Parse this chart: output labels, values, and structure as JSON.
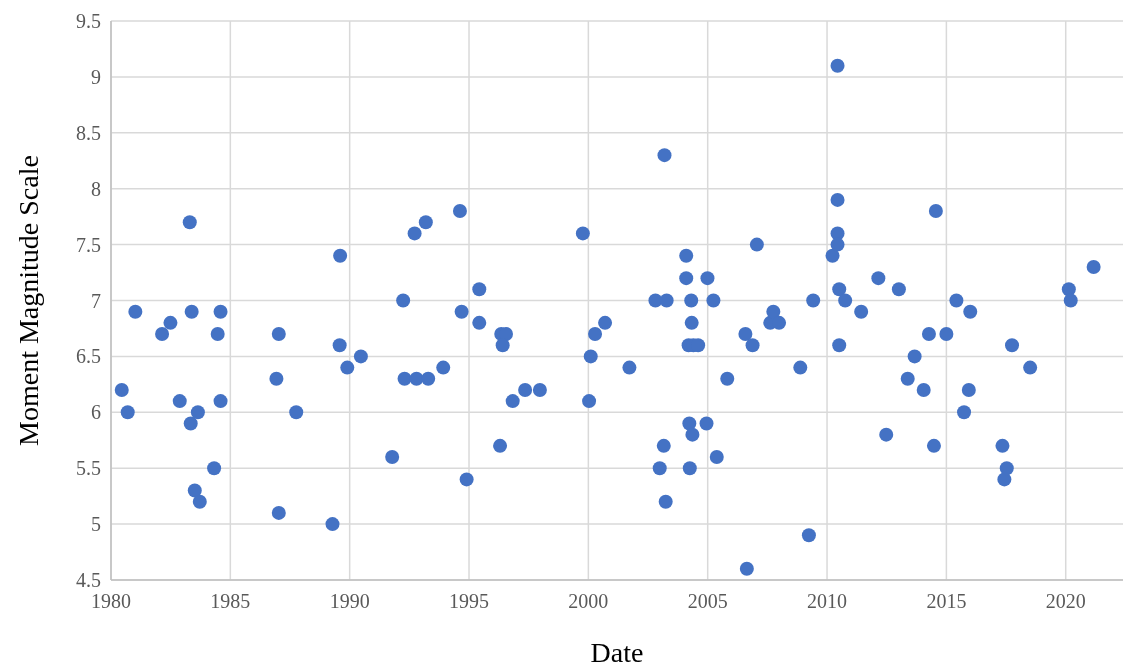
{
  "chart_data": {
    "type": "scatter",
    "xlabel": "Date",
    "ylabel": "Moment Magnitude Scale",
    "color": "#4472c4",
    "marker": "circle",
    "grid": true,
    "xlim": [
      1980,
      2022.4
    ],
    "xticks": [
      1980,
      1985,
      1990,
      1995,
      2000,
      2005,
      2010,
      2015,
      2020
    ],
    "ylim": [
      4.5,
      9.5
    ],
    "yticks": [
      4.5,
      5,
      5.5,
      6,
      6.5,
      7,
      7.5,
      8,
      8.5,
      9,
      9.5
    ],
    "x": [
      1980.45,
      1980.7,
      1981.02,
      1982.14,
      1982.49,
      1982.88,
      1983.3,
      1983.38,
      1983.34,
      1983.51,
      1983.64,
      1983.72,
      1984.32,
      1984.47,
      1984.59,
      1984.59,
      1986.93,
      1987.03,
      1987.03,
      1987.76,
      1989.28,
      1989.6,
      1989.58,
      1989.9,
      1990.47,
      1991.78,
      1992.24,
      1992.3,
      1992.72,
      1992.8,
      1993.19,
      1993.29,
      1993.92,
      1994.62,
      1994.69,
      1994.9,
      1995.43,
      1995.43,
      1996.3,
      1996.35,
      1996.55,
      1996.41,
      1996.83,
      1997.35,
      1997.97,
      1999.77,
      2000.03,
      2000.1,
      2000.28,
      2000.7,
      2001.72,
      2002.81,
      2002.99,
      2003.16,
      2003.19,
      2003.24,
      2003.28,
      2004.1,
      2004.1,
      2004.23,
      2004.2,
      2004.4,
      2004.6,
      2004.25,
      2004.31,
      2004.33,
      2004.36,
      2004.95,
      2004.99,
      2005.24,
      2005.38,
      2005.82,
      2006.58,
      2006.64,
      2006.88,
      2007.06,
      2007.62,
      2007.75,
      2007.99,
      2008.88,
      2009.24,
      2009.42,
      2010.23,
      2010.44,
      2010.44,
      2010.44,
      2010.44,
      2010.51,
      2010.51,
      2010.76,
      2011.43,
      2012.15,
      2012.48,
      2013.01,
      2013.38,
      2013.67,
      2014.05,
      2014.27,
      2014.48,
      2014.56,
      2015.0,
      2015.42,
      2015.74,
      2015.94,
      2016.0,
      2017.35,
      2017.43,
      2017.53,
      2017.75,
      2018.51,
      2020.13,
      2020.21,
      2021.17
    ],
    "values": [
      6.2,
      6.0,
      6.9,
      6.7,
      6.8,
      6.1,
      7.7,
      6.9,
      5.9,
      5.3,
      6.0,
      5.2,
      5.5,
      6.7,
      6.9,
      6.1,
      6.3,
      6.7,
      5.1,
      6.0,
      5.0,
      7.4,
      6.6,
      6.4,
      6.5,
      5.6,
      7.0,
      6.3,
      7.6,
      6.3,
      7.7,
      6.3,
      6.4,
      7.8,
      6.9,
      5.4,
      7.1,
      6.8,
      5.7,
      6.7,
      6.7,
      6.6,
      6.1,
      6.2,
      6.2,
      7.6,
      6.1,
      6.5,
      6.7,
      6.8,
      6.4,
      7.0,
      5.5,
      5.7,
      8.3,
      5.2,
      7.0,
      7.4,
      7.2,
      5.9,
      6.6,
      6.6,
      6.6,
      5.5,
      7.0,
      6.8,
      5.8,
      5.9,
      7.2,
      7.0,
      5.6,
      6.3,
      6.7,
      4.6,
      6.6,
      7.5,
      6.8,
      6.9,
      6.8,
      6.4,
      4.9,
      7.0,
      7.4,
      9.1,
      7.9,
      7.6,
      7.5,
      7.1,
      6.6,
      7.0,
      6.9,
      7.2,
      5.8,
      7.1,
      6.3,
      6.5,
      6.2,
      6.7,
      5.7,
      7.8,
      6.7,
      7.0,
      6.0,
      6.2,
      6.9,
      5.7,
      5.4,
      5.5,
      6.6,
      6.4,
      7.1,
      7.0,
      7.3
    ]
  }
}
